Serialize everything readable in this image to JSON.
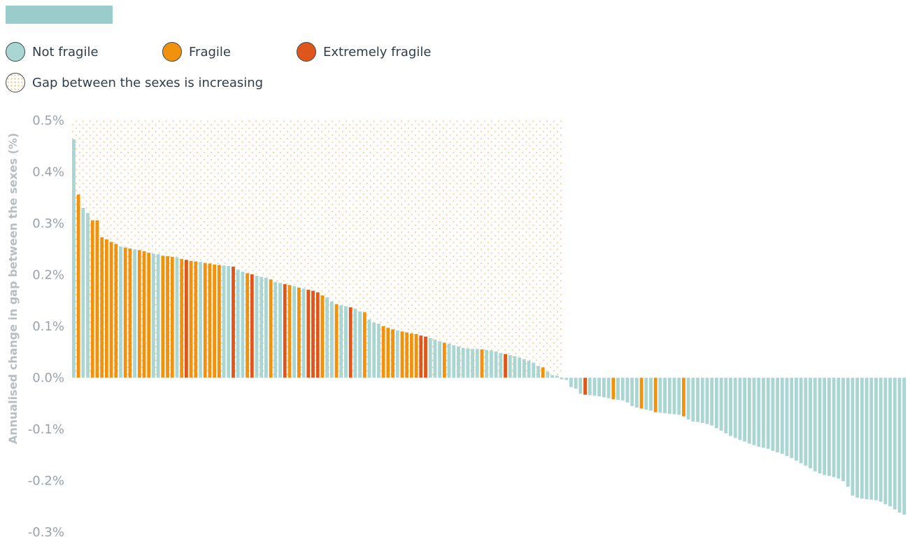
{
  "colors": {
    "not_fragile": "#a9d5d3",
    "fragile": "#f2920c",
    "extremely_fragile": "#e0561a",
    "hatch": "#f5c88a",
    "header_bar": "#99cccb",
    "axis_text": "#9aa3a9",
    "ylabel_text": "#b7bec2"
  },
  "legend": {
    "not_fragile": "Not fragile",
    "fragile": "Fragile",
    "extremely_fragile": "Extremely fragile",
    "increasing": "Gap between the sexes is increasing"
  },
  "chart_data": {
    "type": "bar",
    "title": "",
    "xlabel": "",
    "ylabel": "Annualised change in gap between the sexes (%)",
    "ylim": [
      -0.3,
      0.5
    ],
    "yticks": [
      0.5,
      0.4,
      0.3,
      0.2,
      0.1,
      0.0,
      -0.1,
      -0.2,
      -0.3
    ],
    "ytick_labels": [
      "0.5%",
      "0.4%",
      "0.3%",
      "0.2%",
      "0.1%",
      "0.0%",
      "-0.1%",
      "-0.2%",
      "-0.3%"
    ],
    "grid": false,
    "legend_position": "top-left",
    "hatched_region": "positive values",
    "category_codes": {
      "N": "Not fragile",
      "F": "Fragile",
      "E": "Extremely fragile"
    },
    "bars": [
      [
        0.463,
        "N"
      ],
      [
        0.356,
        "F"
      ],
      [
        0.33,
        "N"
      ],
      [
        0.32,
        "N"
      ],
      [
        0.306,
        "F"
      ],
      [
        0.306,
        "F"
      ],
      [
        0.273,
        "F"
      ],
      [
        0.269,
        "F"
      ],
      [
        0.264,
        "F"
      ],
      [
        0.26,
        "F"
      ],
      [
        0.255,
        "N"
      ],
      [
        0.253,
        "F"
      ],
      [
        0.251,
        "F"
      ],
      [
        0.249,
        "N"
      ],
      [
        0.248,
        "F"
      ],
      [
        0.246,
        "F"
      ],
      [
        0.243,
        "F"
      ],
      [
        0.241,
        "N"
      ],
      [
        0.24,
        "N"
      ],
      [
        0.237,
        "F"
      ],
      [
        0.236,
        "F"
      ],
      [
        0.235,
        "F"
      ],
      [
        0.234,
        "N"
      ],
      [
        0.231,
        "F"
      ],
      [
        0.229,
        "E"
      ],
      [
        0.227,
        "F"
      ],
      [
        0.226,
        "F"
      ],
      [
        0.225,
        "N"
      ],
      [
        0.223,
        "F"
      ],
      [
        0.222,
        "F"
      ],
      [
        0.22,
        "F"
      ],
      [
        0.219,
        "F"
      ],
      [
        0.218,
        "N"
      ],
      [
        0.217,
        "N"
      ],
      [
        0.216,
        "E"
      ],
      [
        0.21,
        "N"
      ],
      [
        0.206,
        "N"
      ],
      [
        0.203,
        "F"
      ],
      [
        0.201,
        "E"
      ],
      [
        0.198,
        "N"
      ],
      [
        0.196,
        "N"
      ],
      [
        0.194,
        "N"
      ],
      [
        0.191,
        "F"
      ],
      [
        0.186,
        "N"
      ],
      [
        0.184,
        "N"
      ],
      [
        0.182,
        "E"
      ],
      [
        0.18,
        "F"
      ],
      [
        0.178,
        "N"
      ],
      [
        0.175,
        "F"
      ],
      [
        0.173,
        "N"
      ],
      [
        0.171,
        "E"
      ],
      [
        0.169,
        "E"
      ],
      [
        0.166,
        "E"
      ],
      [
        0.16,
        "F"
      ],
      [
        0.156,
        "N"
      ],
      [
        0.148,
        "N"
      ],
      [
        0.143,
        "F"
      ],
      [
        0.141,
        "N"
      ],
      [
        0.139,
        "N"
      ],
      [
        0.137,
        "E"
      ],
      [
        0.134,
        "N"
      ],
      [
        0.129,
        "N"
      ],
      [
        0.127,
        "F"
      ],
      [
        0.113,
        "N"
      ],
      [
        0.107,
        "N"
      ],
      [
        0.105,
        "N"
      ],
      [
        0.1,
        "F"
      ],
      [
        0.097,
        "F"
      ],
      [
        0.094,
        "F"
      ],
      [
        0.092,
        "N"
      ],
      [
        0.09,
        "F"
      ],
      [
        0.088,
        "F"
      ],
      [
        0.086,
        "F"
      ],
      [
        0.085,
        "F"
      ],
      [
        0.082,
        "E"
      ],
      [
        0.08,
        "E"
      ],
      [
        0.077,
        "N"
      ],
      [
        0.074,
        "N"
      ],
      [
        0.071,
        "N"
      ],
      [
        0.068,
        "F"
      ],
      [
        0.066,
        "N"
      ],
      [
        0.063,
        "N"
      ],
      [
        0.061,
        "N"
      ],
      [
        0.058,
        "N"
      ],
      [
        0.057,
        "N"
      ],
      [
        0.056,
        "N"
      ],
      [
        0.056,
        "N"
      ],
      [
        0.055,
        "F"
      ],
      [
        0.054,
        "N"
      ],
      [
        0.053,
        "N"
      ],
      [
        0.051,
        "N"
      ],
      [
        0.048,
        "N"
      ],
      [
        0.046,
        "E"
      ],
      [
        0.044,
        "N"
      ],
      [
        0.042,
        "N"
      ],
      [
        0.039,
        "N"
      ],
      [
        0.036,
        "N"
      ],
      [
        0.033,
        "N"
      ],
      [
        0.029,
        "N"
      ],
      [
        0.023,
        "N"
      ],
      [
        0.02,
        "F"
      ],
      [
        0.012,
        "N"
      ],
      [
        0.005,
        "N"
      ],
      [
        0.004,
        "N"
      ],
      [
        -0.003,
        "N"
      ],
      [
        -0.004,
        "N"
      ],
      [
        -0.018,
        "N"
      ],
      [
        -0.021,
        "N"
      ],
      [
        -0.031,
        "N"
      ],
      [
        -0.033,
        "E"
      ],
      [
        -0.034,
        "N"
      ],
      [
        -0.035,
        "N"
      ],
      [
        -0.036,
        "N"
      ],
      [
        -0.038,
        "N"
      ],
      [
        -0.04,
        "N"
      ],
      [
        -0.042,
        "F"
      ],
      [
        -0.043,
        "N"
      ],
      [
        -0.044,
        "N"
      ],
      [
        -0.048,
        "N"
      ],
      [
        -0.055,
        "N"
      ],
      [
        -0.058,
        "N"
      ],
      [
        -0.06,
        "F"
      ],
      [
        -0.062,
        "N"
      ],
      [
        -0.064,
        "N"
      ],
      [
        -0.067,
        "F"
      ],
      [
        -0.068,
        "N"
      ],
      [
        -0.069,
        "N"
      ],
      [
        -0.07,
        "N"
      ],
      [
        -0.071,
        "N"
      ],
      [
        -0.072,
        "N"
      ],
      [
        -0.075,
        "F"
      ],
      [
        -0.081,
        "N"
      ],
      [
        -0.085,
        "N"
      ],
      [
        -0.086,
        "N"
      ],
      [
        -0.088,
        "N"
      ],
      [
        -0.09,
        "N"
      ],
      [
        -0.093,
        "N"
      ],
      [
        -0.098,
        "N"
      ],
      [
        -0.103,
        "N"
      ],
      [
        -0.108,
        "N"
      ],
      [
        -0.113,
        "N"
      ],
      [
        -0.117,
        "N"
      ],
      [
        -0.121,
        "N"
      ],
      [
        -0.124,
        "N"
      ],
      [
        -0.128,
        "N"
      ],
      [
        -0.131,
        "N"
      ],
      [
        -0.134,
        "N"
      ],
      [
        -0.136,
        "N"
      ],
      [
        -0.138,
        "N"
      ],
      [
        -0.142,
        "N"
      ],
      [
        -0.145,
        "N"
      ],
      [
        -0.148,
        "N"
      ],
      [
        -0.152,
        "N"
      ],
      [
        -0.156,
        "N"
      ],
      [
        -0.161,
        "N"
      ],
      [
        -0.166,
        "N"
      ],
      [
        -0.171,
        "N"
      ],
      [
        -0.176,
        "N"
      ],
      [
        -0.182,
        "N"
      ],
      [
        -0.186,
        "N"
      ],
      [
        -0.189,
        "N"
      ],
      [
        -0.191,
        "N"
      ],
      [
        -0.193,
        "N"
      ],
      [
        -0.196,
        "N"
      ],
      [
        -0.201,
        "N"
      ],
      [
        -0.212,
        "N"
      ],
      [
        -0.229,
        "N"
      ],
      [
        -0.233,
        "N"
      ],
      [
        -0.235,
        "N"
      ],
      [
        -0.236,
        "N"
      ],
      [
        -0.237,
        "N"
      ],
      [
        -0.238,
        "N"
      ],
      [
        -0.241,
        "N"
      ],
      [
        -0.246,
        "N"
      ],
      [
        -0.25,
        "N"
      ],
      [
        -0.256,
        "N"
      ],
      [
        -0.262,
        "N"
      ],
      [
        -0.266,
        "N"
      ]
    ]
  }
}
